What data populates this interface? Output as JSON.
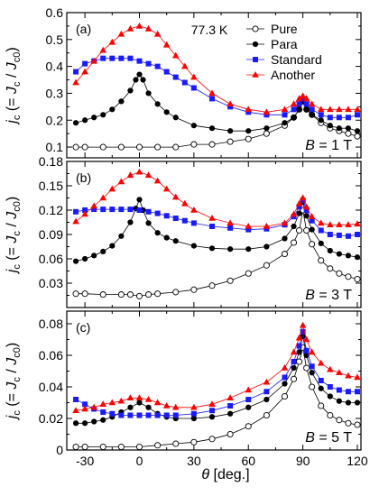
{
  "figure": {
    "xlabel_symbol": "θ",
    "xlabel_unit": " [deg.]",
    "ylabel_parts": [
      "j",
      "c",
      " (= ",
      "J",
      "c",
      " / ",
      "J",
      "c0",
      ")"
    ],
    "temperature": "77.3 K"
  },
  "colors": {
    "pure": "#000000",
    "para": "#000000",
    "standard": "#1a1aff",
    "another": "#ff0000"
  },
  "chart_data": [
    {
      "type": "scatter",
      "panel_label": "(a)",
      "field_label_symbol": "B",
      "field_label_value": " = 1 T",
      "xlim": [
        -40,
        122
      ],
      "ylim": [
        0.06,
        0.6
      ],
      "xticks": [
        -30,
        0,
        30,
        60,
        90,
        120
      ],
      "yticks": [
        0.1,
        0.2,
        0.3,
        0.4,
        0.5,
        0.6
      ],
      "ytick_labels": [
        "0.1",
        "0.2",
        "0.3",
        "0.4",
        "0.5",
        "0.6"
      ],
      "legend": [
        "Pure",
        "Para",
        "Standard",
        "Another"
      ],
      "series": [
        {
          "name": "Pure",
          "marker": "open-circle",
          "x": [
            -35,
            -30,
            -20,
            -10,
            0,
            10,
            20,
            30,
            40,
            50,
            60,
            70,
            80,
            85,
            88,
            90,
            92,
            95,
            100,
            105,
            110,
            115,
            120
          ],
          "y": [
            0.1,
            0.1,
            0.1,
            0.1,
            0.1,
            0.1,
            0.1,
            0.11,
            0.11,
            0.12,
            0.13,
            0.15,
            0.18,
            0.21,
            0.24,
            0.27,
            0.24,
            0.22,
            0.19,
            0.17,
            0.16,
            0.15,
            0.14
          ]
        },
        {
          "name": "Para",
          "marker": "filled-circle",
          "x": [
            -35,
            -30,
            -25,
            -20,
            -15,
            -10,
            -5,
            -2,
            0,
            2,
            5,
            10,
            15,
            20,
            30,
            40,
            50,
            60,
            70,
            80,
            85,
            88,
            90,
            92,
            95,
            100,
            105,
            110,
            115,
            120
          ],
          "y": [
            0.19,
            0.2,
            0.21,
            0.22,
            0.24,
            0.27,
            0.31,
            0.35,
            0.37,
            0.35,
            0.3,
            0.26,
            0.23,
            0.21,
            0.18,
            0.17,
            0.16,
            0.16,
            0.17,
            0.19,
            0.21,
            0.24,
            0.27,
            0.24,
            0.22,
            0.2,
            0.18,
            0.17,
            0.17,
            0.16
          ]
        },
        {
          "name": "Standard",
          "marker": "filled-square",
          "x": [
            -35,
            -30,
            -25,
            -20,
            -15,
            -10,
            -5,
            0,
            5,
            10,
            15,
            20,
            25,
            30,
            40,
            50,
            60,
            70,
            80,
            85,
            88,
            90,
            92,
            95,
            100,
            105,
            110,
            115,
            120
          ],
          "y": [
            0.38,
            0.41,
            0.42,
            0.43,
            0.43,
            0.43,
            0.43,
            0.42,
            0.41,
            0.4,
            0.38,
            0.36,
            0.34,
            0.32,
            0.28,
            0.25,
            0.23,
            0.22,
            0.22,
            0.24,
            0.26,
            0.28,
            0.26,
            0.24,
            0.22,
            0.21,
            0.21,
            0.21,
            0.22
          ]
        },
        {
          "name": "Another",
          "marker": "filled-triangle",
          "x": [
            -35,
            -30,
            -25,
            -20,
            -15,
            -10,
            -5,
            0,
            5,
            10,
            15,
            20,
            25,
            30,
            40,
            50,
            60,
            70,
            80,
            85,
            88,
            90,
            92,
            95,
            100,
            105,
            110,
            115,
            120
          ],
          "y": [
            0.34,
            0.38,
            0.42,
            0.46,
            0.49,
            0.52,
            0.54,
            0.55,
            0.54,
            0.52,
            0.48,
            0.44,
            0.4,
            0.36,
            0.3,
            0.26,
            0.24,
            0.23,
            0.24,
            0.26,
            0.28,
            0.29,
            0.28,
            0.26,
            0.24,
            0.24,
            0.24,
            0.24,
            0.24
          ]
        }
      ]
    },
    {
      "type": "scatter",
      "panel_label": "(b)",
      "field_label_symbol": "B",
      "field_label_value": " = 3 T",
      "xlim": [
        -40,
        122
      ],
      "ylim": [
        0.0,
        0.18
      ],
      "xticks": [
        -30,
        0,
        30,
        60,
        90,
        120
      ],
      "yticks": [
        0.03,
        0.06,
        0.09,
        0.12,
        0.15,
        0.18
      ],
      "ytick_labels": [
        "0.03",
        "0.06",
        "0.09",
        "0.12",
        "0.15",
        "0.18"
      ],
      "series": [
        {
          "name": "Pure",
          "marker": "open-circle",
          "x": [
            -35,
            -30,
            -20,
            -10,
            -5,
            0,
            5,
            10,
            20,
            30,
            40,
            50,
            60,
            70,
            80,
            85,
            88,
            90,
            92,
            95,
            100,
            105,
            110,
            115,
            120
          ],
          "y": [
            0.017,
            0.017,
            0.016,
            0.016,
            0.016,
            0.014,
            0.016,
            0.017,
            0.019,
            0.022,
            0.027,
            0.033,
            0.042,
            0.052,
            0.066,
            0.08,
            0.095,
            0.12,
            0.095,
            0.078,
            0.058,
            0.048,
            0.042,
            0.038,
            0.035
          ]
        },
        {
          "name": "Para",
          "marker": "filled-circle",
          "x": [
            -35,
            -30,
            -25,
            -20,
            -15,
            -10,
            -5,
            -2,
            0,
            2,
            5,
            10,
            15,
            20,
            30,
            40,
            50,
            60,
            70,
            80,
            85,
            88,
            90,
            92,
            95,
            100,
            105,
            110,
            115,
            120
          ],
          "y": [
            0.057,
            0.06,
            0.064,
            0.069,
            0.076,
            0.088,
            0.105,
            0.122,
            0.133,
            0.12,
            0.104,
            0.092,
            0.086,
            0.082,
            0.076,
            0.073,
            0.072,
            0.072,
            0.075,
            0.085,
            0.1,
            0.116,
            0.13,
            0.113,
            0.096,
            0.079,
            0.07,
            0.066,
            0.064,
            0.062
          ]
        },
        {
          "name": "Standard",
          "marker": "filled-square",
          "x": [
            -35,
            -30,
            -25,
            -20,
            -15,
            -10,
            -5,
            0,
            5,
            10,
            15,
            20,
            25,
            30,
            40,
            50,
            60,
            70,
            80,
            85,
            88,
            90,
            92,
            95,
            100,
            105,
            110,
            115,
            120
          ],
          "y": [
            0.118,
            0.12,
            0.121,
            0.121,
            0.121,
            0.121,
            0.121,
            0.12,
            0.118,
            0.116,
            0.113,
            0.11,
            0.107,
            0.104,
            0.1,
            0.098,
            0.096,
            0.097,
            0.102,
            0.112,
            0.124,
            0.132,
            0.12,
            0.107,
            0.095,
            0.09,
            0.089,
            0.088,
            0.09
          ]
        },
        {
          "name": "Another",
          "marker": "filled-triangle",
          "x": [
            -35,
            -30,
            -25,
            -20,
            -15,
            -10,
            -5,
            0,
            5,
            10,
            15,
            20,
            25,
            30,
            40,
            50,
            60,
            70,
            80,
            85,
            88,
            90,
            92,
            95,
            100,
            105,
            110,
            115,
            120
          ],
          "y": [
            0.106,
            0.115,
            0.125,
            0.135,
            0.146,
            0.155,
            0.163,
            0.167,
            0.163,
            0.156,
            0.146,
            0.136,
            0.128,
            0.12,
            0.11,
            0.104,
            0.1,
            0.1,
            0.104,
            0.115,
            0.128,
            0.135,
            0.124,
            0.112,
            0.104,
            0.102,
            0.102,
            0.102,
            0.103
          ]
        }
      ]
    },
    {
      "type": "scatter",
      "panel_label": "(c)",
      "field_label_symbol": "B",
      "field_label_value": " = 5 T",
      "xlim": [
        -40,
        122
      ],
      "ylim": [
        0.0,
        0.088
      ],
      "xticks": [
        -30,
        0,
        30,
        60,
        90,
        120
      ],
      "xtick_labels": [
        "-30",
        "0",
        "30",
        "60",
        "90",
        "120"
      ],
      "yticks": [
        0,
        0.02,
        0.04,
        0.06,
        0.08
      ],
      "ytick_labels": [
        "0",
        "0.02",
        "0.04",
        "0.06",
        "0.08"
      ],
      "series": [
        {
          "name": "Pure",
          "marker": "open-circle",
          "x": [
            -35,
            -30,
            -20,
            -10,
            0,
            10,
            20,
            30,
            40,
            50,
            60,
            70,
            80,
            85,
            88,
            90,
            92,
            95,
            100,
            105,
            110,
            115,
            120
          ],
          "y": [
            0.002,
            0.002,
            0.002,
            0.002,
            0.002,
            0.003,
            0.004,
            0.005,
            0.007,
            0.01,
            0.015,
            0.022,
            0.034,
            0.045,
            0.056,
            0.065,
            0.052,
            0.04,
            0.028,
            0.022,
            0.019,
            0.017,
            0.016
          ]
        },
        {
          "name": "Para",
          "marker": "filled-circle",
          "x": [
            -35,
            -30,
            -25,
            -20,
            -15,
            -10,
            -5,
            0,
            5,
            10,
            15,
            20,
            30,
            40,
            50,
            60,
            70,
            80,
            85,
            88,
            90,
            92,
            95,
            100,
            105,
            110,
            115,
            120
          ],
          "y": [
            0.017,
            0.017,
            0.018,
            0.019,
            0.021,
            0.024,
            0.027,
            0.03,
            0.027,
            0.023,
            0.021,
            0.02,
            0.02,
            0.021,
            0.023,
            0.027,
            0.032,
            0.042,
            0.052,
            0.062,
            0.072,
            0.06,
            0.049,
            0.039,
            0.034,
            0.031,
            0.03,
            0.03
          ]
        },
        {
          "name": "Standard",
          "marker": "filled-square",
          "x": [
            -35,
            -30,
            -25,
            -20,
            -15,
            -10,
            -5,
            0,
            5,
            10,
            15,
            20,
            30,
            40,
            50,
            60,
            70,
            80,
            85,
            88,
            90,
            92,
            95,
            100,
            105,
            110,
            115,
            120
          ],
          "y": [
            0.032,
            0.029,
            0.026,
            0.024,
            0.023,
            0.022,
            0.022,
            0.022,
            0.022,
            0.022,
            0.022,
            0.022,
            0.023,
            0.025,
            0.028,
            0.032,
            0.037,
            0.046,
            0.056,
            0.066,
            0.075,
            0.063,
            0.053,
            0.044,
            0.04,
            0.038,
            0.037,
            0.037
          ]
        },
        {
          "name": "Another",
          "marker": "filled-triangle",
          "x": [
            -35,
            -30,
            -25,
            -20,
            -15,
            -10,
            -5,
            0,
            5,
            10,
            15,
            20,
            30,
            40,
            50,
            60,
            70,
            80,
            85,
            88,
            90,
            92,
            95,
            100,
            105,
            110,
            115,
            120
          ],
          "y": [
            0.025,
            0.026,
            0.027,
            0.029,
            0.03,
            0.031,
            0.033,
            0.033,
            0.032,
            0.03,
            0.028,
            0.027,
            0.027,
            0.029,
            0.033,
            0.038,
            0.043,
            0.052,
            0.062,
            0.071,
            0.079,
            0.07,
            0.062,
            0.055,
            0.051,
            0.049,
            0.047,
            0.046
          ]
        }
      ]
    }
  ]
}
